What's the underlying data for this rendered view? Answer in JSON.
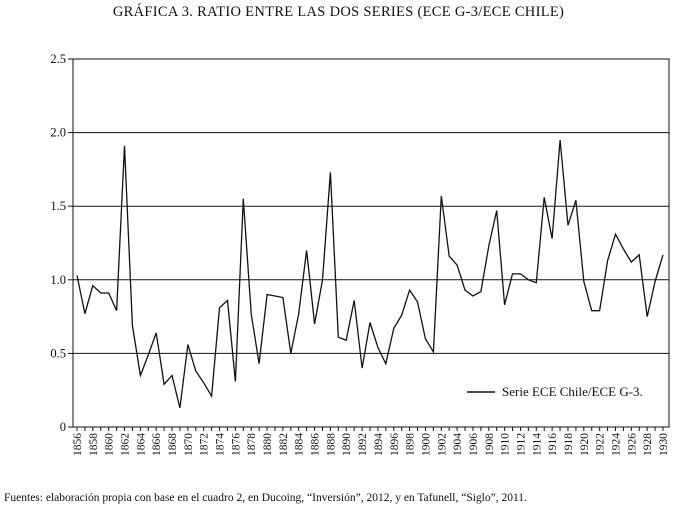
{
  "title": "GRÁFICA 3. RATIO ENTRE LAS DOS SERIES (ECE G-3/ECE CHILE)",
  "source": "Fuentes: elaboración propia con base en el cuadro 2, en Ducoing, “Inversión”, 2012, y en Tafunell, “Siglo”, 2011.",
  "chart_data": {
    "type": "line",
    "title": "GRÁFICA 3. RATIO ENTRE LAS DOS SERIES (ECE G-3/ECE CHILE)",
    "xlabel": "",
    "ylabel": "",
    "xlim": [
      1856,
      1930
    ],
    "ylim": [
      0,
      2.5
    ],
    "yticks": [
      0,
      0.5,
      1.0,
      1.5,
      2.0,
      2.5
    ],
    "ytick_labels": [
      "0",
      "0.5",
      "1.0",
      "1.5",
      "2.0",
      "2.5"
    ],
    "xtick_labels": [
      "1856",
      "1858",
      "1860",
      "1862",
      "1864",
      "1866",
      "1868",
      "1870",
      "1872",
      "1874",
      "1876",
      "1878",
      "1880",
      "1882",
      "1884",
      "1886",
      "1888",
      "1890",
      "1892",
      "1894",
      "1896",
      "1898",
      "1900",
      "1902",
      "1904",
      "1906",
      "1908",
      "1910",
      "1912",
      "1914",
      "1916",
      "1918",
      "1920",
      "1922",
      "1924",
      "1926",
      "1928",
      "1930"
    ],
    "grid": "horizontal",
    "legend_position": "bottom-right",
    "series": [
      {
        "name": "Serie ECE Chile/ECE G-3.",
        "color": "#111111",
        "x": [
          1856,
          1857,
          1858,
          1859,
          1860,
          1861,
          1862,
          1863,
          1864,
          1865,
          1866,
          1867,
          1868,
          1869,
          1870,
          1871,
          1872,
          1873,
          1874,
          1875,
          1876,
          1877,
          1878,
          1879,
          1880,
          1881,
          1882,
          1883,
          1884,
          1885,
          1886,
          1887,
          1888,
          1889,
          1890,
          1891,
          1892,
          1893,
          1894,
          1895,
          1896,
          1897,
          1898,
          1899,
          1900,
          1901,
          1902,
          1903,
          1904,
          1905,
          1906,
          1907,
          1908,
          1909,
          1910,
          1911,
          1912,
          1913,
          1914,
          1915,
          1916,
          1917,
          1918,
          1919,
          1920,
          1921,
          1922,
          1923,
          1924,
          1925,
          1926,
          1927,
          1928,
          1929,
          1930
        ],
        "values": [
          1.03,
          0.77,
          0.96,
          0.91,
          0.91,
          0.79,
          1.91,
          0.69,
          0.35,
          0.49,
          0.64,
          0.29,
          0.35,
          0.13,
          0.56,
          0.38,
          0.3,
          0.21,
          0.81,
          0.86,
          0.31,
          1.55,
          0.77,
          0.43,
          0.9,
          0.89,
          0.88,
          0.5,
          0.77,
          1.2,
          0.7,
          1.0,
          1.73,
          0.61,
          0.59,
          0.86,
          0.4,
          0.71,
          0.54,
          0.43,
          0.67,
          0.76,
          0.93,
          0.85,
          0.6,
          0.51,
          1.57,
          1.16,
          1.1,
          0.93,
          0.89,
          0.92,
          1.23,
          1.47,
          0.83,
          1.04,
          1.04,
          1.0,
          0.98,
          1.56,
          1.28,
          1.95,
          1.37,
          1.54,
          0.99,
          0.79,
          0.79,
          1.13,
          1.31,
          1.21,
          1.12,
          1.17,
          0.75,
          0.99,
          1.17
        ]
      }
    ]
  }
}
